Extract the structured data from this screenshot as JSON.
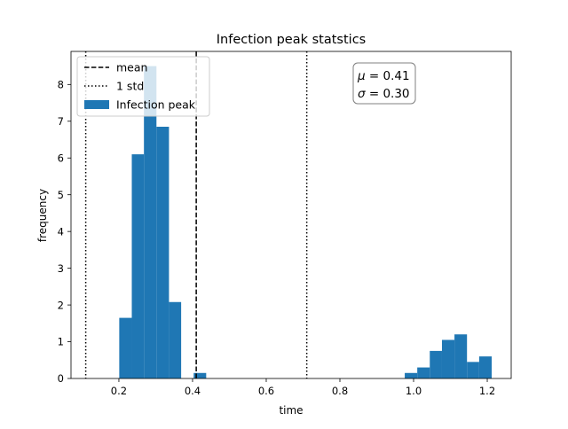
{
  "chart_data": {
    "type": "bar",
    "title": "Infection peak statstics",
    "xlabel": "time",
    "ylabel": "frequency",
    "xlim": [
      0.07,
      1.265
    ],
    "ylim": [
      0,
      8.9
    ],
    "grid": false,
    "legend_placement": "top-left",
    "x_ticks": [
      {
        "value": 0.2,
        "label": "0.2"
      },
      {
        "value": 0.4,
        "label": "0.4"
      },
      {
        "value": 0.6,
        "label": "0.6"
      },
      {
        "value": 0.8,
        "label": "0.8"
      },
      {
        "value": 1.0,
        "label": "1.0"
      },
      {
        "value": 1.2,
        "label": "1.2"
      }
    ],
    "y_ticks": [
      {
        "value": 0,
        "label": "0"
      },
      {
        "value": 1,
        "label": "1"
      },
      {
        "value": 2,
        "label": "2"
      },
      {
        "value": 3,
        "label": "3"
      },
      {
        "value": 4,
        "label": "4"
      },
      {
        "value": 5,
        "label": "5"
      },
      {
        "value": 6,
        "label": "6"
      },
      {
        "value": 7,
        "label": "7"
      },
      {
        "value": 8,
        "label": "8"
      }
    ],
    "series": [
      {
        "name": "Infection peak",
        "color": "#1f77b4",
        "bins": [
          {
            "x0": 0.201,
            "x1": 0.235,
            "value": 1.65
          },
          {
            "x0": 0.235,
            "x1": 0.268,
            "value": 6.1
          },
          {
            "x0": 0.268,
            "x1": 0.302,
            "value": 8.5
          },
          {
            "x0": 0.302,
            "x1": 0.336,
            "value": 6.85
          },
          {
            "x0": 0.336,
            "x1": 0.369,
            "value": 2.08
          },
          {
            "x0": 0.403,
            "x1": 0.437,
            "value": 0.15
          },
          {
            "x0": 0.976,
            "x1": 1.01,
            "value": 0.15
          },
          {
            "x0": 1.01,
            "x1": 1.044,
            "value": 0.3
          },
          {
            "x0": 1.044,
            "x1": 1.077,
            "value": 0.75
          },
          {
            "x0": 1.077,
            "x1": 1.111,
            "value": 1.05
          },
          {
            "x0": 1.111,
            "x1": 1.145,
            "value": 1.2
          },
          {
            "x0": 1.145,
            "x1": 1.178,
            "value": 0.45
          },
          {
            "x0": 1.178,
            "x1": 1.212,
            "value": 0.6
          }
        ]
      }
    ],
    "reference_lines": [
      {
        "name": "mean",
        "x": 0.41,
        "style": "dashed",
        "color": "#000000"
      },
      {
        "name": "1 std",
        "x": 0.11,
        "style": "dotted",
        "color": "#000000"
      },
      {
        "name": "1 std",
        "x": 0.71,
        "style": "dotted",
        "color": "#000000"
      }
    ],
    "legend": [
      {
        "label": "mean",
        "marker": "dashed-line"
      },
      {
        "label": "1 std",
        "marker": "dotted-line"
      },
      {
        "label": "Infection peak",
        "marker": "patch"
      }
    ],
    "annotation": {
      "mu_symbol": "μ",
      "mu_value": " = 0.41",
      "sigma_symbol": "σ",
      "sigma_value": " = 0.30"
    }
  }
}
